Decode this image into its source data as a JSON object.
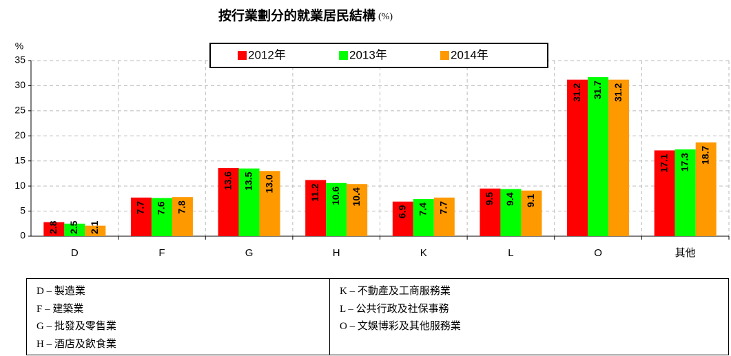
{
  "chart_data": {
    "type": "bar",
    "title": "按行業劃分的就業居民結構",
    "title_unit": "(%)",
    "y_label": "%",
    "categories": [
      "D",
      "F",
      "G",
      "H",
      "K",
      "L",
      "O",
      "其他"
    ],
    "series": [
      {
        "name": "2012年",
        "color": "#ff0000",
        "values": [
          2.8,
          7.7,
          13.6,
          11.2,
          6.9,
          9.5,
          31.2,
          17.1
        ],
        "value_labels": [
          "2.8",
          "7.7",
          "13.6",
          "11.2",
          "6.9",
          "9.5",
          "31.2",
          "17.1"
        ]
      },
      {
        "name": "2013年",
        "color": "#00ff00",
        "values": [
          2.5,
          7.6,
          13.5,
          10.6,
          7.4,
          9.4,
          31.7,
          17.3
        ],
        "value_labels": [
          "2.5",
          "7.6",
          "13.5",
          "10.6",
          "7.4",
          "9.4",
          "31.7",
          "17.3"
        ]
      },
      {
        "name": "2014年",
        "color": "#ff9900",
        "values": [
          2.1,
          7.8,
          13.0,
          10.4,
          7.7,
          9.1,
          31.2,
          18.7
        ],
        "value_labels": [
          "2.1",
          "7.8",
          "13.0",
          "10.4",
          "7.7",
          "9.1",
          "31.2",
          "18.7"
        ]
      }
    ],
    "ylim": [
      0,
      35
    ],
    "yticks": [
      0,
      5,
      10,
      15,
      20,
      25,
      30,
      35
    ],
    "grid": true,
    "legend": "top"
  },
  "table": {
    "left": [
      "D – 製造業",
      "F – 建築業",
      "G – 批發及零售業",
      "H – 酒店及飲食業"
    ],
    "right": [
      "K – 不動產及工商服務業",
      "L – 公共行政及社保事務",
      "O – 文娛博彩及其他服務業"
    ]
  }
}
